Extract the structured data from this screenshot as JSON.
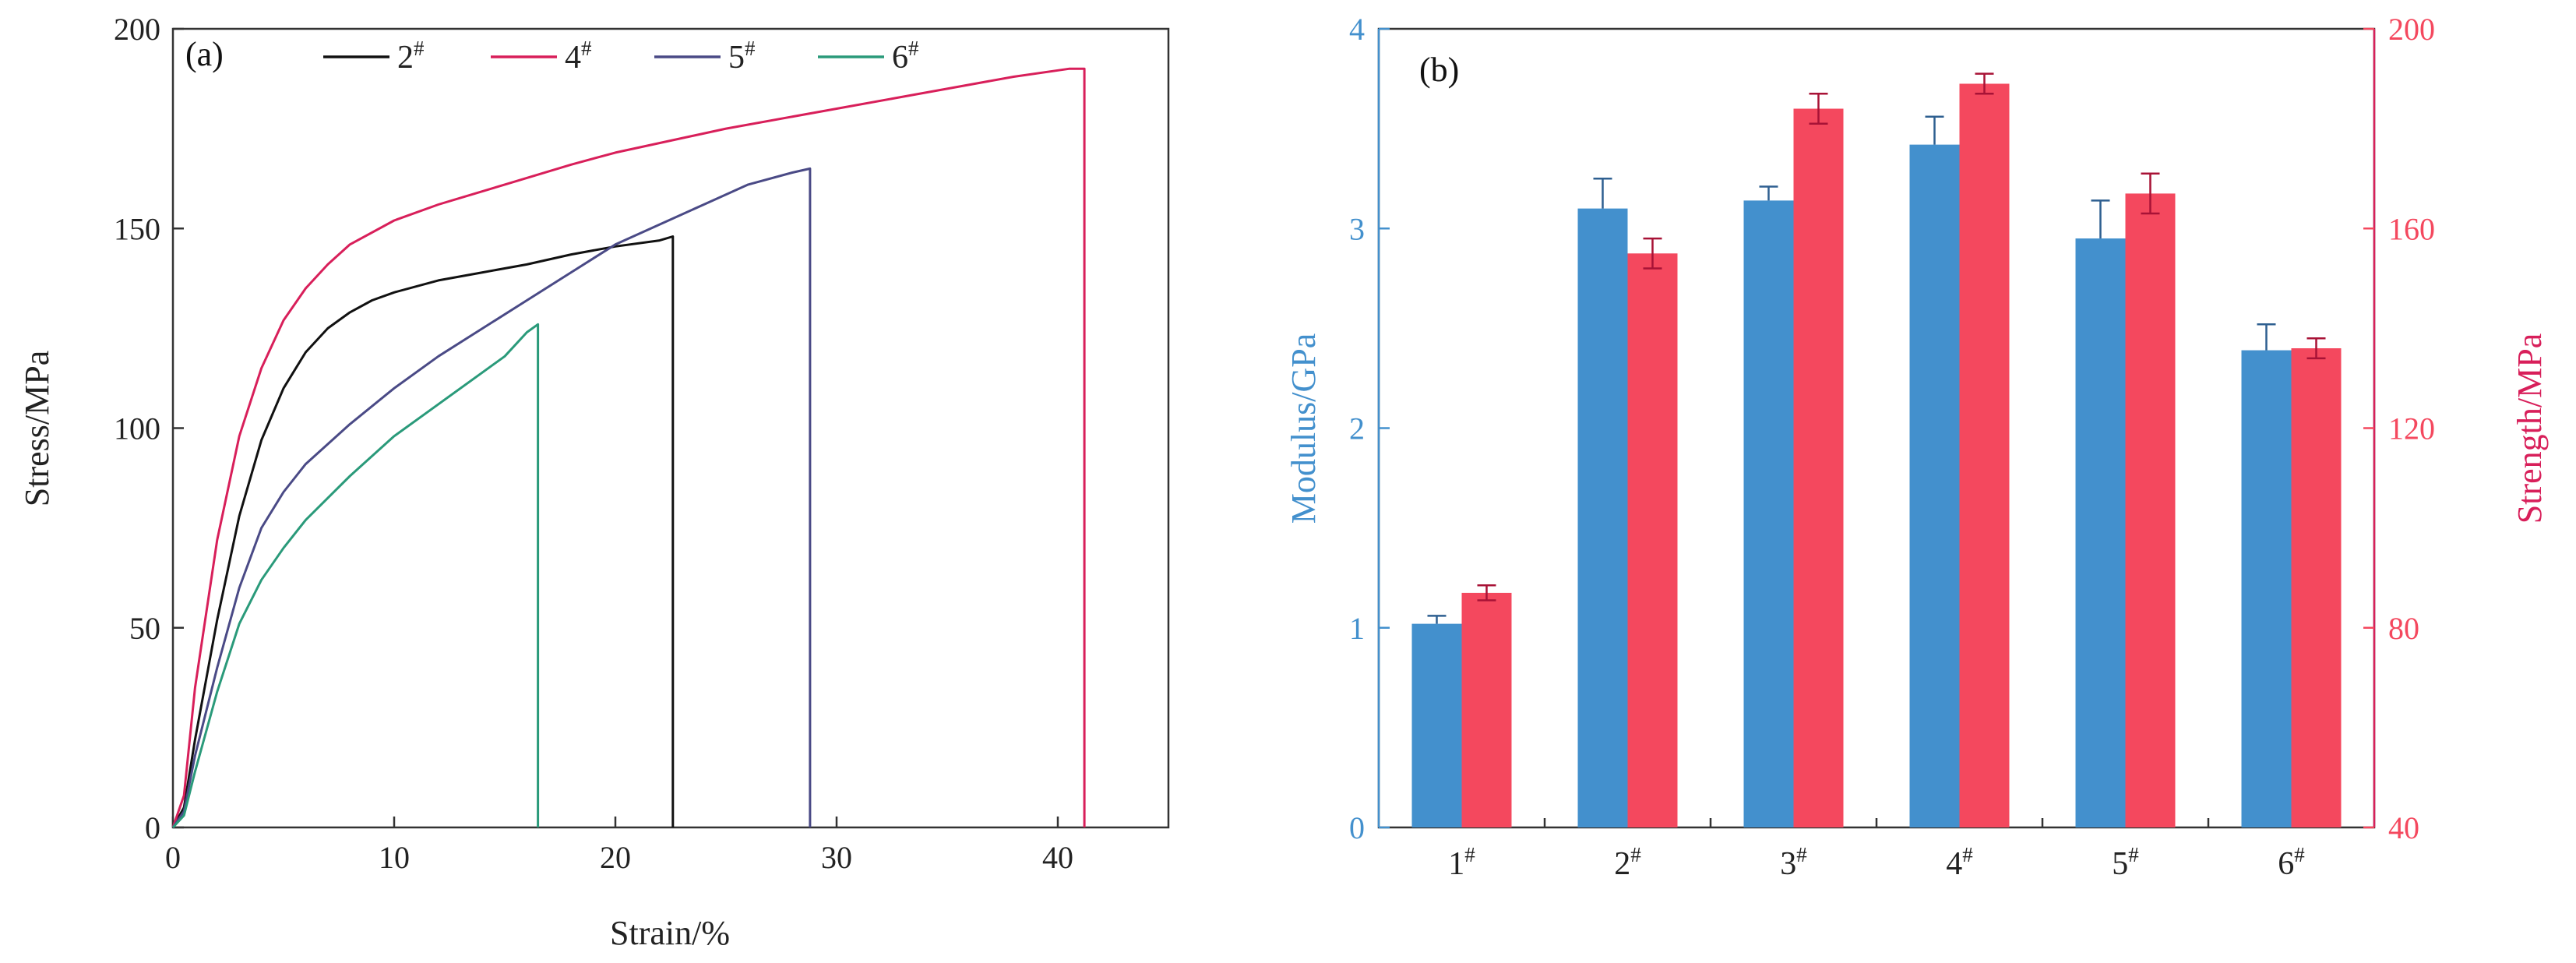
{
  "chart_data": [
    {
      "type": "line",
      "panel_label": "(a)",
      "xlabel": "Strain/%",
      "ylabel": "Stress/MPa",
      "xlim": [
        0,
        45
      ],
      "ylim": [
        0,
        200
      ],
      "x_ticks": [
        0,
        10,
        20,
        30,
        40
      ],
      "y_ticks": [
        0,
        50,
        100,
        150,
        200
      ],
      "legend_position": "top",
      "series": [
        {
          "name": "2",
          "superscript": "#",
          "color": "#111111",
          "points": [
            [
              0,
              0
            ],
            [
              0.5,
              5
            ],
            [
              1,
              22
            ],
            [
              2,
              52
            ],
            [
              3,
              78
            ],
            [
              4,
              97
            ],
            [
              5,
              110
            ],
            [
              6,
              119
            ],
            [
              7,
              125
            ],
            [
              8,
              129
            ],
            [
              9,
              132
            ],
            [
              10,
              134
            ],
            [
              12,
              137
            ],
            [
              14,
              139
            ],
            [
              16,
              141
            ],
            [
              18,
              143.5
            ],
            [
              20,
              145.5
            ],
            [
              22,
              147
            ],
            [
              22.6,
              148
            ],
            [
              22.6,
              0
            ]
          ]
        },
        {
          "name": "4",
          "superscript": "#",
          "color": "#d81f5a",
          "points": [
            [
              0,
              0
            ],
            [
              0.5,
              8
            ],
            [
              1,
              35
            ],
            [
              2,
              72
            ],
            [
              3,
              98
            ],
            [
              4,
              115
            ],
            [
              5,
              127
            ],
            [
              6,
              135
            ],
            [
              7,
              141
            ],
            [
              8,
              146
            ],
            [
              10,
              152
            ],
            [
              12,
              156
            ],
            [
              15,
              161
            ],
            [
              18,
              166
            ],
            [
              20,
              169
            ],
            [
              25,
              175
            ],
            [
              30,
              180
            ],
            [
              35,
              185
            ],
            [
              38,
              188
            ],
            [
              40.5,
              190
            ],
            [
              41.2,
              190
            ],
            [
              41.2,
              0
            ]
          ]
        },
        {
          "name": "5",
          "superscript": "#",
          "color": "#4a4a86",
          "points": [
            [
              0,
              0
            ],
            [
              0.5,
              4
            ],
            [
              1,
              18
            ],
            [
              2,
              40
            ],
            [
              3,
              60
            ],
            [
              4,
              75
            ],
            [
              5,
              84
            ],
            [
              6,
              91
            ],
            [
              8,
              101
            ],
            [
              10,
              110
            ],
            [
              12,
              118
            ],
            [
              14,
              125
            ],
            [
              16,
              132
            ],
            [
              18,
              139
            ],
            [
              20,
              146
            ],
            [
              22,
              151
            ],
            [
              24,
              156
            ],
            [
              26,
              161
            ],
            [
              28,
              164
            ],
            [
              28.8,
              165
            ],
            [
              28.8,
              0
            ]
          ]
        },
        {
          "name": "6",
          "superscript": "#",
          "color": "#2a9a7a",
          "points": [
            [
              0,
              0
            ],
            [
              0.5,
              3
            ],
            [
              1,
              14
            ],
            [
              2,
              34
            ],
            [
              3,
              51
            ],
            [
              4,
              62
            ],
            [
              5,
              70
            ],
            [
              6,
              77
            ],
            [
              8,
              88
            ],
            [
              10,
              98
            ],
            [
              12,
              106
            ],
            [
              14,
              114
            ],
            [
              15,
              118
            ],
            [
              16,
              124
            ],
            [
              16.5,
              126
            ],
            [
              16.5,
              0
            ]
          ]
        }
      ]
    },
    {
      "type": "bar",
      "panel_label": "(b)",
      "categories": [
        "1",
        "2",
        "3",
        "4",
        "5",
        "6"
      ],
      "category_superscript": "#",
      "ylabel_left": "Modulus/GPa",
      "ylabel_right": "Strength/MPa",
      "ylim_left": [
        0,
        4
      ],
      "ylim_right": [
        40,
        200
      ],
      "left_ticks": [
        0,
        1,
        2,
        3,
        4
      ],
      "right_ticks": [
        40,
        80,
        120,
        160,
        200
      ],
      "series": [
        {
          "name": "Modulus",
          "axis": "left",
          "color": "#4390cd",
          "values": [
            1.02,
            3.1,
            3.14,
            3.42,
            2.95,
            2.39
          ],
          "errors": [
            0.04,
            0.15,
            0.07,
            0.14,
            0.19,
            0.13
          ]
        },
        {
          "name": "Strength",
          "axis": "right",
          "color": "#f4485e",
          "values": [
            87,
            155,
            184,
            189,
            167,
            136
          ],
          "errors": [
            1.5,
            3,
            3,
            2,
            4,
            2
          ]
        }
      ]
    }
  ]
}
